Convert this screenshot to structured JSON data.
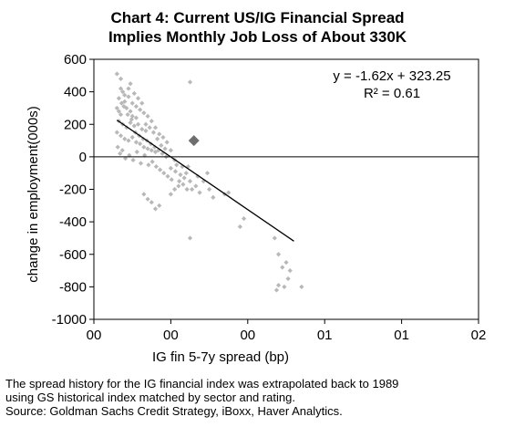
{
  "title_lines": [
    "Chart 4: Current US/IG Financial Spread",
    "Implies Monthly Job Loss of About 330K"
  ],
  "footnotes": [
    "The spread history for the IG financial index  was extrapolated back to 1989",
    "using GS historical index matched by sector and rating.",
    "Source: Goldman Sachs Credit Strategy, iBoxx, Haver Analytics."
  ],
  "chart_data": {
    "type": "scatter",
    "title": "Chart 4: Current US/IG Financial Spread Implies Monthly Job Loss of About 330K",
    "xlabel": "IG fin 5-7y spread (bp)",
    "ylabel": "change in employment(000s)",
    "x_tick_labels": [
      "00",
      "00",
      "00",
      "01",
      "01",
      "02"
    ],
    "xlim": [
      0,
      1000
    ],
    "y_ticks": [
      600,
      400,
      200,
      0,
      -200,
      -400,
      -600,
      -800,
      -1000
    ],
    "ylim": [
      -1000,
      600
    ],
    "grid": false,
    "equation": "y = -1.62x + 323.25",
    "r_squared": "R² = 0.61",
    "trendline": {
      "x": [
        60,
        520
      ],
      "y": [
        226,
        -519
      ]
    },
    "current_point": {
      "x": 260,
      "y": 100
    },
    "points": [
      [
        60,
        510
      ],
      [
        70,
        480
      ],
      [
        75,
        400
      ],
      [
        65,
        360
      ],
      [
        80,
        340
      ],
      [
        90,
        420
      ],
      [
        85,
        300
      ],
      [
        95,
        280
      ],
      [
        70,
        260
      ],
      [
        100,
        250
      ],
      [
        110,
        240
      ],
      [
        65,
        220
      ],
      [
        75,
        200
      ],
      [
        85,
        180
      ],
      [
        95,
        210
      ],
      [
        105,
        190
      ],
      [
        115,
        200
      ],
      [
        125,
        170
      ],
      [
        135,
        160
      ],
      [
        60,
        150
      ],
      [
        70,
        130
      ],
      [
        80,
        110
      ],
      [
        90,
        100
      ],
      [
        100,
        120
      ],
      [
        110,
        90
      ],
      [
        120,
        80
      ],
      [
        130,
        60
      ],
      [
        140,
        50
      ],
      [
        150,
        40
      ],
      [
        160,
        30
      ],
      [
        60,
        300
      ],
      [
        65,
        280
      ],
      [
        72,
        330
      ],
      [
        78,
        310
      ],
      [
        88,
        260
      ],
      [
        98,
        230
      ],
      [
        108,
        150
      ],
      [
        118,
        130
      ],
      [
        128,
        110
      ],
      [
        138,
        100
      ],
      [
        148,
        80
      ],
      [
        158,
        60
      ],
      [
        168,
        40
      ],
      [
        178,
        20
      ],
      [
        188,
        0
      ],
      [
        62,
        60
      ],
      [
        68,
        20
      ],
      [
        74,
        40
      ],
      [
        82,
        -10
      ],
      [
        92,
        10
      ],
      [
        102,
        -20
      ],
      [
        112,
        30
      ],
      [
        122,
        -40
      ],
      [
        132,
        10
      ],
      [
        142,
        -50
      ],
      [
        152,
        -30
      ],
      [
        162,
        -60
      ],
      [
        172,
        -80
      ],
      [
        182,
        -100
      ],
      [
        192,
        -120
      ],
      [
        202,
        -140
      ],
      [
        212,
        -90
      ],
      [
        222,
        -150
      ],
      [
        232,
        -170
      ],
      [
        242,
        -200
      ],
      [
        130,
        -230
      ],
      [
        140,
        -260
      ],
      [
        150,
        -280
      ],
      [
        160,
        -320
      ],
      [
        170,
        -300
      ],
      [
        250,
        -150
      ],
      [
        200,
        -230
      ],
      [
        210,
        -200
      ],
      [
        220,
        -180
      ],
      [
        230,
        -60
      ],
      [
        240,
        -100
      ],
      [
        210,
        -20
      ],
      [
        200,
        40
      ],
      [
        190,
        90
      ],
      [
        180,
        120
      ],
      [
        170,
        140
      ],
      [
        160,
        180
      ],
      [
        150,
        220
      ],
      [
        140,
        250
      ],
      [
        130,
        270
      ],
      [
        120,
        290
      ],
      [
        110,
        310
      ],
      [
        100,
        330
      ],
      [
        90,
        370
      ],
      [
        80,
        380
      ],
      [
        70,
        420
      ],
      [
        95,
        450
      ],
      [
        105,
        390
      ],
      [
        115,
        360
      ],
      [
        125,
        330
      ],
      [
        135,
        200
      ],
      [
        145,
        180
      ],
      [
        155,
        150
      ],
      [
        165,
        110
      ],
      [
        175,
        70
      ],
      [
        185,
        50
      ],
      [
        200,
        -70
      ],
      [
        215,
        -50
      ],
      [
        225,
        -110
      ],
      [
        235,
        -130
      ],
      [
        245,
        -60
      ],
      [
        255,
        -200
      ],
      [
        265,
        -180
      ],
      [
        275,
        -220
      ],
      [
        285,
        -150
      ],
      [
        295,
        -100
      ],
      [
        250,
        460
      ],
      [
        300,
        -200
      ],
      [
        310,
        -250
      ],
      [
        270,
        -120
      ],
      [
        350,
        -220
      ],
      [
        380,
        -430
      ],
      [
        390,
        -380
      ],
      [
        340,
        -230
      ],
      [
        250,
        -500
      ],
      [
        470,
        -500
      ],
      [
        480,
        -600
      ],
      [
        490,
        -680
      ],
      [
        500,
        -650
      ],
      [
        510,
        -700
      ],
      [
        475,
        -820
      ],
      [
        480,
        -790
      ],
      [
        505,
        -750
      ],
      [
        495,
        -800
      ],
      [
        540,
        -800
      ]
    ]
  }
}
